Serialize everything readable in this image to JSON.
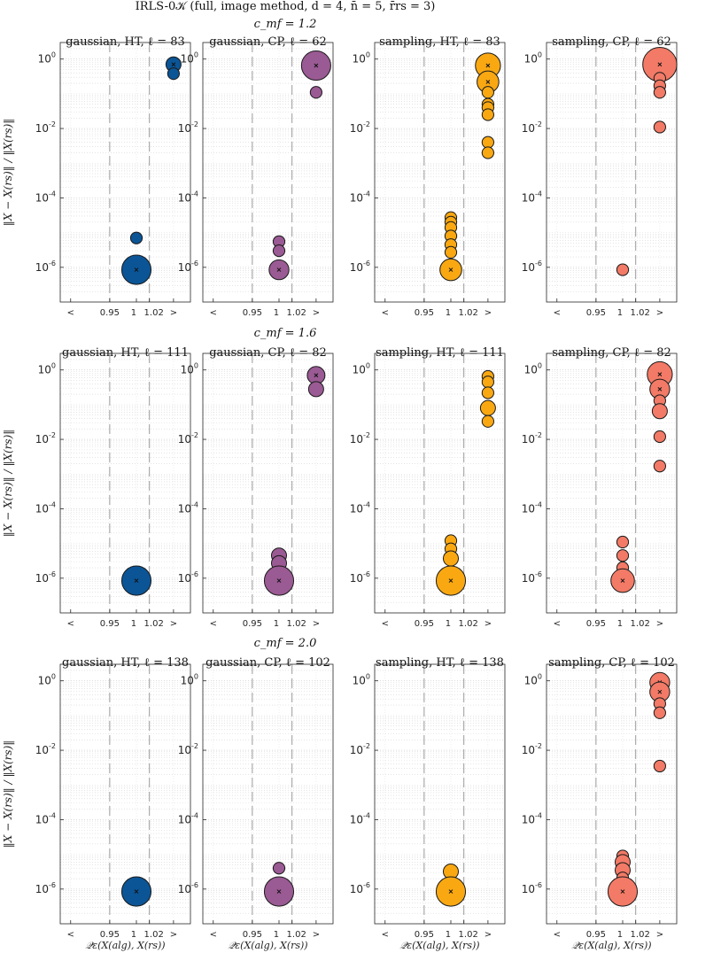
{
  "title": "IRLS-0𝒦 (full, image method, d = 4, n̄ = 5, r̄rs = 3)",
  "ylabel": "‖X − X(rs)‖ / ‖X(rs)‖",
  "xlabel": "𝒬ε(X(alg), X(rs))",
  "x_tick_labels": [
    "<",
    "0.95",
    "1",
    "1.02",
    ">"
  ],
  "y_tick_labels": [
    "10",
    "10",
    "10",
    "10"
  ],
  "y_tick_exponents": [
    "0",
    "-2",
    "-4",
    "-6"
  ],
  "colors": {
    "gaussian-HT": "#0b5596",
    "gaussian-CP": "#9a5a93",
    "sampling-HT": "#f9a812",
    "sampling-CP": "#f27a66"
  },
  "chart_data": [
    {
      "cmf_label": "c_mf = 1.2",
      "panels": [
        {
          "type": "scatter",
          "series": "gaussian-HT",
          "title": "gaussian, HT, ℓ = 83",
          "points": [
            {
              "x": "1",
              "y": 8.5e-07,
              "size": 10,
              "marker": true
            },
            {
              "x": "1",
              "y": 7e-06,
              "size": 1
            },
            {
              "x": ">",
              "y": 0.7,
              "size": 2,
              "marker": true
            },
            {
              "x": ">",
              "y": 0.38,
              "size": 1
            }
          ]
        },
        {
          "type": "scatter",
          "series": "gaussian-CP",
          "title": "gaussian, CP, ℓ = 62",
          "points": [
            {
              "x": ">",
              "y": 0.65,
              "size": 10,
              "marker": true
            },
            {
              "x": ">",
              "y": 0.11,
              "size": 1
            },
            {
              "x": "1",
              "y": 5.5e-06,
              "size": 1
            },
            {
              "x": "1",
              "y": 3e-06,
              "size": 1
            },
            {
              "x": "1",
              "y": 8.5e-07,
              "size": 4,
              "marker": true
            }
          ]
        },
        {
          "type": "scatter",
          "series": "sampling-HT",
          "title": "sampling, HT, ℓ = 83",
          "points": [
            {
              "x": ">",
              "y": 0.65,
              "size": 7,
              "marker": true
            },
            {
              "x": ">",
              "y": 0.22,
              "size": 5,
              "marker": true
            },
            {
              "x": ">",
              "y": 0.11,
              "size": 1
            },
            {
              "x": ">",
              "y": 0.05,
              "size": 1
            },
            {
              "x": ">",
              "y": 0.04,
              "size": 1
            },
            {
              "x": ">",
              "y": 0.025,
              "size": 1
            },
            {
              "x": ">",
              "y": 0.004,
              "size": 1
            },
            {
              "x": ">",
              "y": 0.002,
              "size": 1
            },
            {
              "x": "1",
              "y": 2.7e-05,
              "size": 1
            },
            {
              "x": "1",
              "y": 2e-05,
              "size": 1
            },
            {
              "x": "1",
              "y": 1.4e-05,
              "size": 1
            },
            {
              "x": "1",
              "y": 8e-06,
              "size": 1
            },
            {
              "x": "1",
              "y": 4.5e-06,
              "size": 1
            },
            {
              "x": "1",
              "y": 2.7e-06,
              "size": 1
            },
            {
              "x": "1",
              "y": 8.5e-07,
              "size": 5,
              "marker": true
            }
          ]
        },
        {
          "type": "scatter",
          "series": "sampling-CP",
          "title": "sampling, CP, ℓ = 62",
          "points": [
            {
              "x": ">",
              "y": 0.7,
              "size": 14,
              "marker": true
            },
            {
              "x": ">",
              "y": 0.28,
              "size": 1
            },
            {
              "x": ">",
              "y": 0.17,
              "size": 1
            },
            {
              "x": ">",
              "y": 0.11,
              "size": 1
            },
            {
              "x": ">",
              "y": 0.011,
              "size": 1
            },
            {
              "x": "1",
              "y": 8.5e-07,
              "size": 1
            }
          ]
        }
      ]
    },
    {
      "cmf_label": "c_mf = 1.6",
      "panels": [
        {
          "type": "scatter",
          "series": "gaussian-HT",
          "title": "gaussian, HT, ℓ = 111",
          "points": [
            {
              "x": "1",
              "y": 8.5e-07,
              "size": 10,
              "marker": true
            }
          ]
        },
        {
          "type": "scatter",
          "series": "gaussian-CP",
          "title": "gaussian, CP, ℓ = 82",
          "points": [
            {
              "x": ">",
              "y": 0.7,
              "size": 3,
              "marker": true
            },
            {
              "x": ">",
              "y": 0.28,
              "size": 2
            },
            {
              "x": "1",
              "y": 4.5e-06,
              "size": 2
            },
            {
              "x": "1",
              "y": 2.7e-06,
              "size": 2
            },
            {
              "x": "1",
              "y": 8.5e-07,
              "size": 10,
              "marker": true
            }
          ]
        },
        {
          "type": "scatter",
          "series": "sampling-HT",
          "title": "sampling, HT, ℓ = 111",
          "points": [
            {
              "x": ">",
              "y": 0.65,
              "size": 1
            },
            {
              "x": ">",
              "y": 0.45,
              "size": 1
            },
            {
              "x": ">",
              "y": 0.22,
              "size": 1
            },
            {
              "x": ">",
              "y": 0.08,
              "size": 2
            },
            {
              "x": ">",
              "y": 0.033,
              "size": 1
            },
            {
              "x": "1",
              "y": 1.2e-05,
              "size": 1
            },
            {
              "x": "1",
              "y": 7e-06,
              "size": 1
            },
            {
              "x": "1",
              "y": 3.7e-06,
              "size": 2
            },
            {
              "x": "1",
              "y": 8.5e-07,
              "size": 10,
              "marker": true
            }
          ]
        },
        {
          "type": "scatter",
          "series": "sampling-CP",
          "title": "sampling, CP, ℓ = 82",
          "points": [
            {
              "x": ">",
              "y": 0.75,
              "size": 7,
              "marker": true
            },
            {
              "x": ">",
              "y": 0.28,
              "size": 4,
              "marker": true
            },
            {
              "x": ">",
              "y": 0.13,
              "size": 1
            },
            {
              "x": ">",
              "y": 0.065,
              "size": 2
            },
            {
              "x": ">",
              "y": 0.012,
              "size": 1
            },
            {
              "x": ">",
              "y": 0.0017,
              "size": 1
            },
            {
              "x": "1",
              "y": 1.1e-05,
              "size": 1
            },
            {
              "x": "1",
              "y": 4.5e-06,
              "size": 1
            },
            {
              "x": "1",
              "y": 2e-06,
              "size": 1
            },
            {
              "x": "1",
              "y": 8.5e-07,
              "size": 6,
              "marker": true
            }
          ]
        }
      ]
    },
    {
      "cmf_label": "c_mf = 2.0",
      "panels": [
        {
          "type": "scatter",
          "series": "gaussian-HT",
          "title": "gaussian, HT, ℓ = 138",
          "points": [
            {
              "x": "1",
              "y": 8.5e-07,
              "size": 10,
              "marker": true
            }
          ]
        },
        {
          "type": "scatter",
          "series": "gaussian-CP",
          "title": "gaussian, CP, ℓ = 102",
          "points": [
            {
              "x": "1",
              "y": 4e-06,
              "size": 1
            },
            {
              "x": "1",
              "y": 8.5e-07,
              "size": 10,
              "marker": true
            }
          ]
        },
        {
          "type": "scatter",
          "series": "sampling-HT",
          "title": "sampling, HT, ℓ = 138",
          "points": [
            {
              "x": "1",
              "y": 3.2e-06,
              "size": 2
            },
            {
              "x": "1",
              "y": 8.5e-07,
              "size": 10,
              "marker": true
            }
          ]
        },
        {
          "type": "scatter",
          "series": "sampling-CP",
          "title": "sampling, CP, ℓ = 102",
          "points": [
            {
              "x": ">",
              "y": 0.9,
              "size": 4,
              "marker": true
            },
            {
              "x": ">",
              "y": 0.48,
              "size": 4,
              "marker": true
            },
            {
              "x": ">",
              "y": 0.22,
              "size": 1
            },
            {
              "x": ">",
              "y": 0.12,
              "size": 1
            },
            {
              "x": ">",
              "y": 0.0035,
              "size": 1
            },
            {
              "x": "1",
              "y": 9e-06,
              "size": 1
            },
            {
              "x": "1",
              "y": 6e-06,
              "size": 2
            },
            {
              "x": "1",
              "y": 3.5e-06,
              "size": 2
            },
            {
              "x": "1",
              "y": 2.1e-06,
              "size": 1
            },
            {
              "x": "1",
              "y": 8.5e-07,
              "size": 10,
              "marker": true
            }
          ]
        }
      ]
    }
  ],
  "axis": {
    "y_scale": "log",
    "ylim": [
      1e-07,
      3
    ],
    "x_categories": [
      "<",
      "0.95",
      "1",
      "1.02",
      ">"
    ],
    "grid": true,
    "minor_grid": true
  }
}
